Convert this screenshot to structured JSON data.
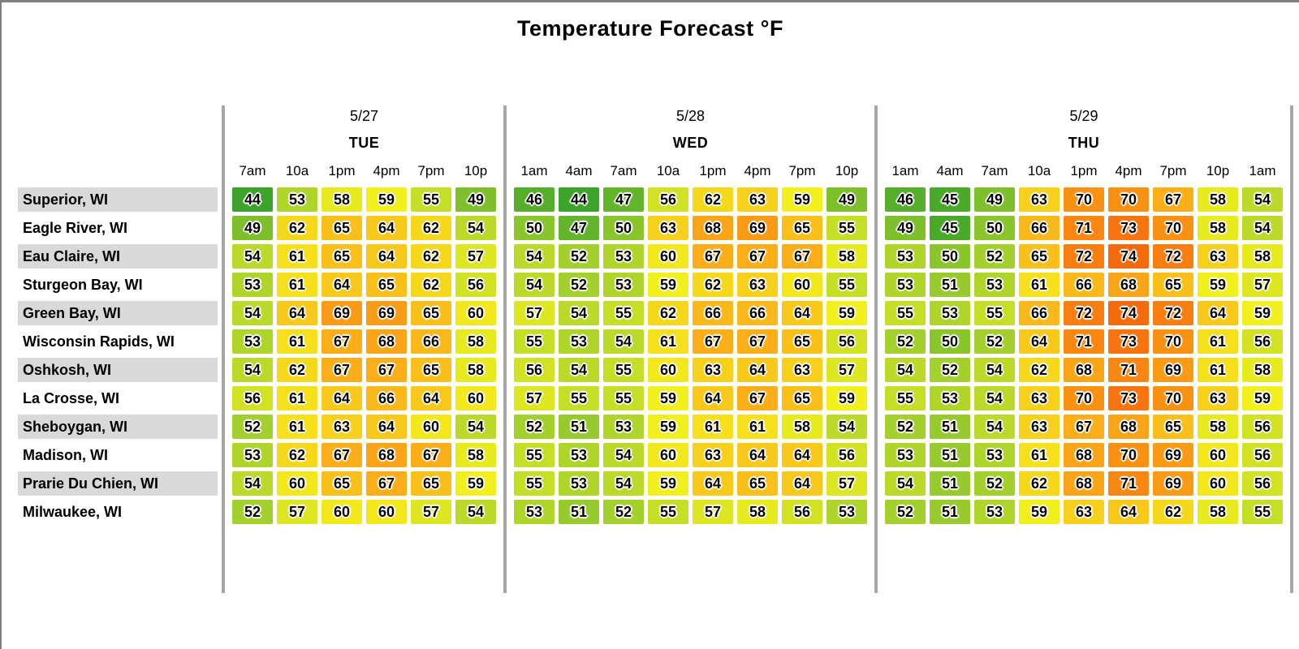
{
  "title": "Temperature Forecast °F",
  "chart_data": {
    "type": "heatmap",
    "title": "Temperature Forecast °F",
    "unit": "°F",
    "value_range": [
      44,
      74
    ],
    "legend": "none",
    "day_groups": [
      {
        "date": "5/27",
        "day": "TUE",
        "times": [
          "7am",
          "10a",
          "1pm",
          "4pm",
          "7pm",
          "10p"
        ]
      },
      {
        "date": "5/28",
        "day": "WED",
        "times": [
          "1am",
          "4am",
          "7am",
          "10a",
          "1pm",
          "4pm",
          "7pm",
          "10p"
        ]
      },
      {
        "date": "5/29",
        "day": "THU",
        "times": [
          "1am",
          "4am",
          "7am",
          "10a",
          "1pm",
          "4pm",
          "7pm",
          "10p",
          "1am"
        ]
      }
    ],
    "rows": [
      {
        "city": "Superior, WI",
        "temps": [
          [
            44,
            53,
            58,
            59,
            55,
            49
          ],
          [
            46,
            44,
            47,
            56,
            62,
            63,
            59,
            49
          ],
          [
            46,
            45,
            49,
            63,
            70,
            70,
            67,
            58,
            54
          ]
        ]
      },
      {
        "city": "Eagle River, WI",
        "temps": [
          [
            49,
            62,
            65,
            64,
            62,
            54
          ],
          [
            50,
            47,
            50,
            63,
            68,
            69,
            65,
            55
          ],
          [
            49,
            45,
            50,
            66,
            71,
            73,
            70,
            58,
            54
          ]
        ]
      },
      {
        "city": "Eau Claire, WI",
        "temps": [
          [
            54,
            61,
            65,
            64,
            62,
            57
          ],
          [
            54,
            52,
            53,
            60,
            67,
            67,
            67,
            58
          ],
          [
            53,
            50,
            52,
            65,
            72,
            74,
            72,
            63,
            58
          ]
        ]
      },
      {
        "city": "Sturgeon Bay, WI",
        "temps": [
          [
            53,
            61,
            64,
            65,
            62,
            56
          ],
          [
            54,
            52,
            53,
            59,
            62,
            63,
            60,
            55
          ],
          [
            53,
            51,
            53,
            61,
            66,
            68,
            65,
            59,
            57
          ]
        ]
      },
      {
        "city": "Green Bay, WI",
        "temps": [
          [
            54,
            64,
            69,
            69,
            65,
            60
          ],
          [
            57,
            54,
            55,
            62,
            66,
            66,
            64,
            59
          ],
          [
            55,
            53,
            55,
            66,
            72,
            74,
            72,
            64,
            59
          ]
        ]
      },
      {
        "city": "Wisconsin Rapids, WI",
        "temps": [
          [
            53,
            61,
            67,
            68,
            66,
            58
          ],
          [
            55,
            53,
            54,
            61,
            67,
            67,
            65,
            56
          ],
          [
            52,
            50,
            52,
            64,
            71,
            73,
            70,
            61,
            56
          ]
        ]
      },
      {
        "city": "Oshkosh, WI",
        "temps": [
          [
            54,
            62,
            67,
            67,
            65,
            58
          ],
          [
            56,
            54,
            55,
            60,
            63,
            64,
            63,
            57
          ],
          [
            54,
            52,
            54,
            62,
            68,
            71,
            69,
            61,
            58
          ]
        ]
      },
      {
        "city": "La Crosse, WI",
        "temps": [
          [
            56,
            61,
            64,
            66,
            64,
            60
          ],
          [
            57,
            55,
            55,
            59,
            64,
            67,
            65,
            59
          ],
          [
            55,
            53,
            54,
            63,
            70,
            73,
            70,
            63,
            59
          ]
        ]
      },
      {
        "city": "Sheboygan, WI",
        "temps": [
          [
            52,
            61,
            63,
            64,
            60,
            54
          ],
          [
            52,
            51,
            53,
            59,
            61,
            61,
            58,
            54
          ],
          [
            52,
            51,
            54,
            63,
            67,
            68,
            65,
            58,
            56
          ]
        ]
      },
      {
        "city": "Madison, WI",
        "temps": [
          [
            53,
            62,
            67,
            68,
            67,
            58
          ],
          [
            55,
            53,
            54,
            60,
            63,
            64,
            64,
            56
          ],
          [
            53,
            51,
            53,
            61,
            68,
            70,
            69,
            60,
            56
          ]
        ]
      },
      {
        "city": "Prarie Du Chien, WI",
        "temps": [
          [
            54,
            60,
            65,
            67,
            65,
            59
          ],
          [
            55,
            53,
            54,
            59,
            64,
            65,
            64,
            57
          ],
          [
            54,
            51,
            52,
            62,
            68,
            71,
            69,
            60,
            56
          ]
        ]
      },
      {
        "city": "Milwaukee, WI",
        "temps": [
          [
            52,
            57,
            60,
            60,
            57,
            54
          ],
          [
            53,
            51,
            52,
            55,
            57,
            58,
            56,
            53
          ],
          [
            52,
            51,
            53,
            59,
            63,
            64,
            62,
            58,
            55
          ]
        ]
      }
    ],
    "color_scale": {
      "stops": [
        [
          44,
          "#3CA42A"
        ],
        [
          52,
          "#A4D02D"
        ],
        [
          59,
          "#F2F01C"
        ],
        [
          66,
          "#FBB81A"
        ],
        [
          74,
          "#F76A0C"
        ]
      ],
      "low_color_meaning": "cooler (green)",
      "high_color_meaning": "warmer (orange)"
    }
  },
  "colors": {
    "row_stripe": "#D9D9D9",
    "separator": "#A6A6A6",
    "page_border": "#7F7F7F",
    "cell_text": "#000000",
    "background": "#FFFFFF"
  }
}
